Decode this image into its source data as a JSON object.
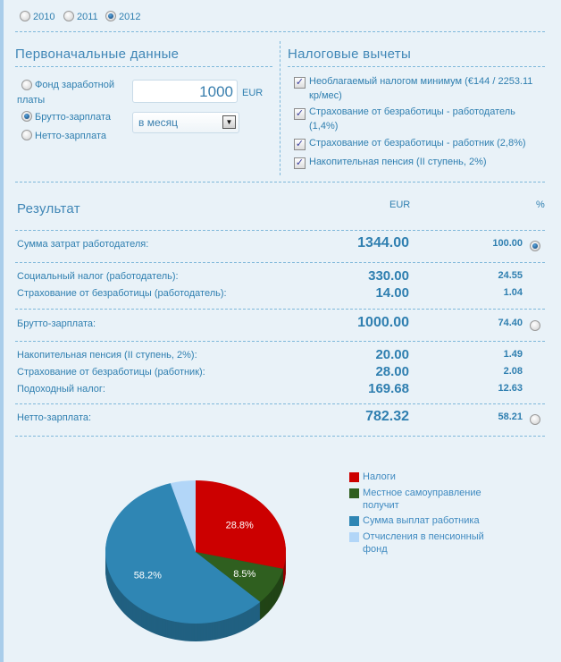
{
  "years": {
    "options": [
      "2010",
      "2011",
      "2012"
    ],
    "selected": "2012"
  },
  "initial": {
    "title": "Первоначальные данные",
    "radios": [
      {
        "label_line1": "Фонд заработной",
        "label_line2": "платы",
        "checked": false
      },
      {
        "label": "Брутто-зарплата",
        "checked": true
      },
      {
        "label": "Нетто-зарплата",
        "checked": false
      }
    ],
    "amount": "1000",
    "currency": "EUR",
    "period": "в месяц"
  },
  "deductions": {
    "title": "Налоговые вычеты",
    "items": [
      {
        "line1": "Необлагаемый налогом минимум (€144 / 2253.11",
        "line2": "кр/мес)",
        "checked": true
      },
      {
        "line1": "Страхование от безработицы - работодатель",
        "line2": "(1,4%)",
        "checked": true
      },
      {
        "line1": "Страхование от безработицы - работник (2,8%)",
        "line2": "",
        "checked": true
      },
      {
        "line1": "Накопительная пенсия (II ступень, 2%)",
        "line2": "",
        "checked": true
      }
    ]
  },
  "result": {
    "title": "Результат",
    "col_eur": "EUR",
    "col_pct": "%",
    "rows": [
      {
        "label": "Сумма затрат работодателя:",
        "eur": "1344.00",
        "pct": "100.00",
        "radio": true,
        "checked": true
      },
      {
        "label": "Социальный налог (работодатель):",
        "eur": "330.00",
        "pct": "24.55"
      },
      {
        "label": "Страхование от безработицы (работодатель):",
        "eur": "14.00",
        "pct": "1.04"
      },
      {
        "label": "Брутто-зарплата:",
        "eur": "1000.00",
        "pct": "74.40",
        "radio": true,
        "checked": false
      },
      {
        "label": "Накопительная пенсия (II ступень, 2%):",
        "eur": "20.00",
        "pct": "1.49"
      },
      {
        "label": "Страхование от безработицы (работник):",
        "eur": "28.00",
        "pct": "2.08"
      },
      {
        "label": "Подоходный налог:",
        "eur": "169.68",
        "pct": "12.63"
      },
      {
        "label": "Нетто-зарплата:",
        "eur": "782.32",
        "pct": "58.21",
        "radio": true,
        "checked": false
      }
    ]
  },
  "chart_data": {
    "type": "pie",
    "style": "3d",
    "legend_position": "right",
    "slices": [
      {
        "name": "Налоги",
        "value": 28.8,
        "label": "28.8%",
        "color": "#cc0000"
      },
      {
        "name": "Местное самоуправление получит",
        "value": 8.5,
        "label": "8.5%",
        "color": "#2f5f1f"
      },
      {
        "name": "Сумма выплат работника",
        "value": 58.2,
        "label": "58.2%",
        "color": "#2f86b4"
      },
      {
        "name": "Отчисления в пенсионный фонд",
        "value": 4.5,
        "label": "",
        "color": "#b2d6f8"
      }
    ],
    "legend": [
      {
        "line1": "Налоги",
        "line2": ""
      },
      {
        "line1": "Местное самоуправление",
        "line2": "получит"
      },
      {
        "line1": "Сумма выплат работника",
        "line2": ""
      },
      {
        "line1": "Отчисления в пенсионный",
        "line2": "фонд"
      }
    ]
  }
}
